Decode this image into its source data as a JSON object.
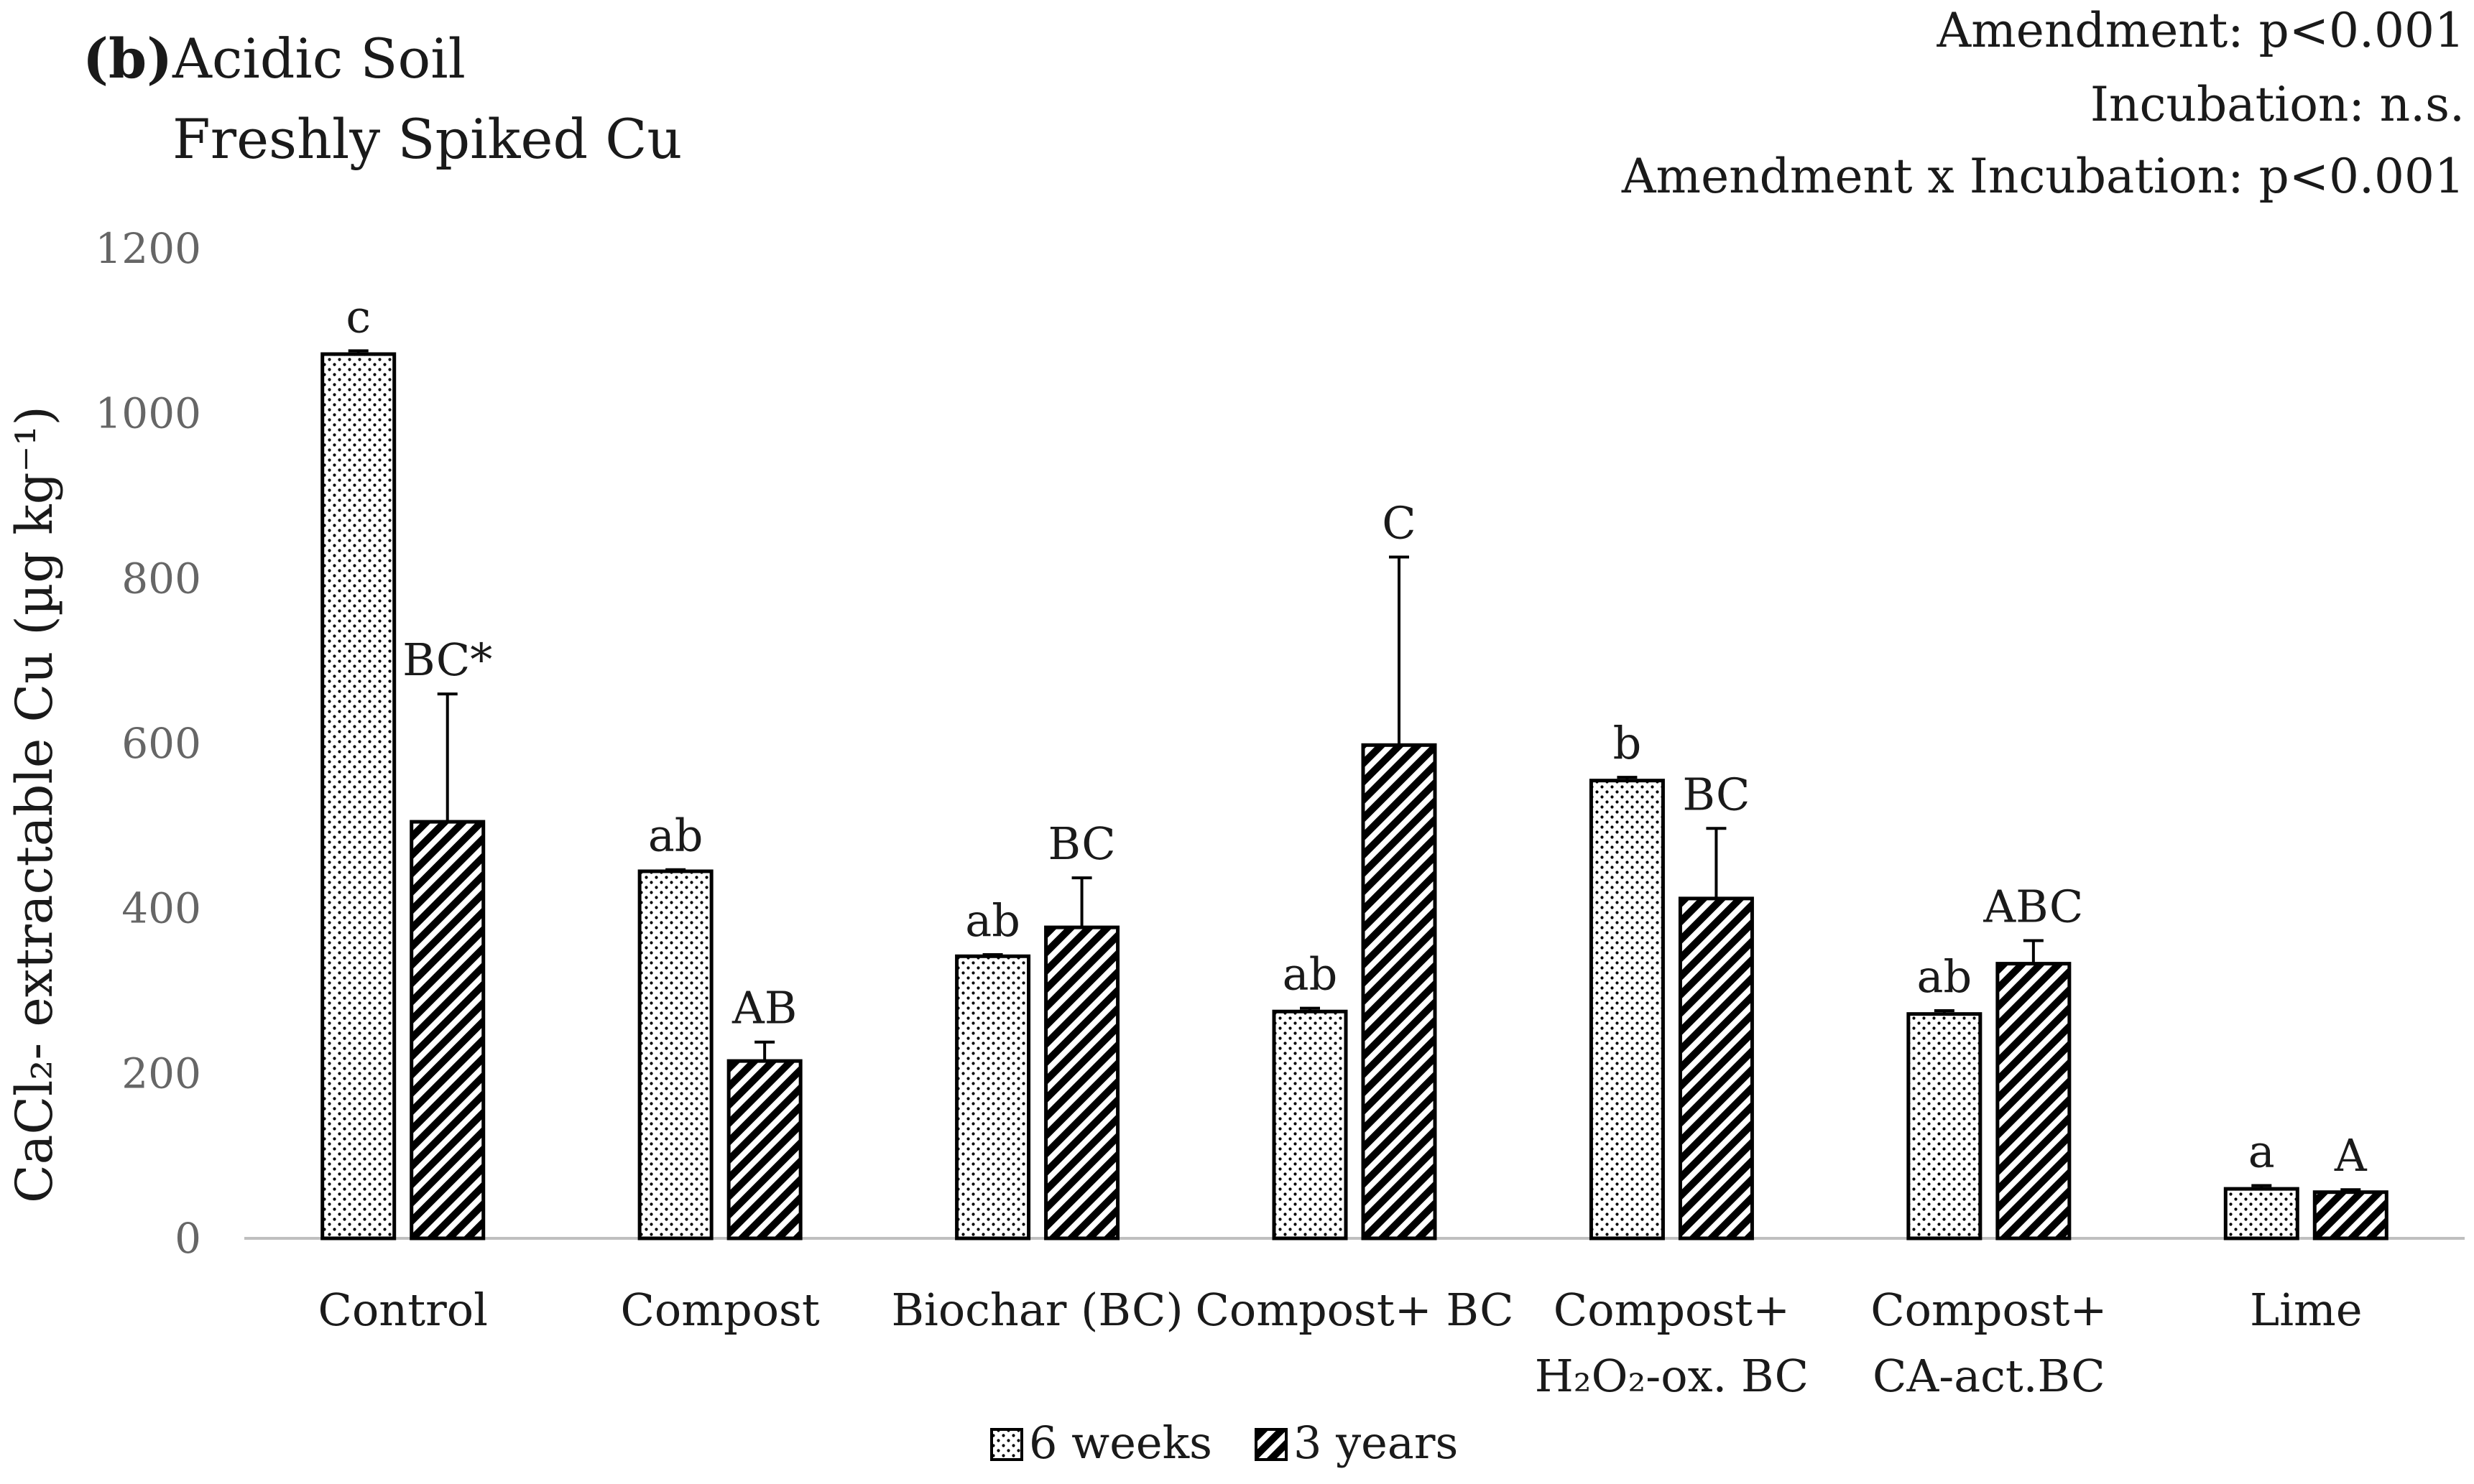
{
  "chart_data": {
    "type": "bar",
    "panel_label": "(b)",
    "title": "Acidic Soil",
    "subtitle": "Freshly Spiked Cu",
    "stats": [
      "Amendment: p<0.001",
      "Incubation: n.s.",
      "Amendment x Incubation: p<0.001"
    ],
    "ylabel": "CaCl₂- extractable Cu (µg kg⁻¹)",
    "ylim": [
      0,
      1200
    ],
    "yticks": [
      "0",
      "200",
      "400",
      "600",
      "800",
      "1000",
      "1200"
    ],
    "categories": [
      [
        "Control"
      ],
      [
        "Compost"
      ],
      [
        "Biochar (BC)"
      ],
      [
        "Compost+ BC"
      ],
      [
        "Compost+",
        "H₂O₂-ox. BC"
      ],
      [
        "Compost+",
        "CA-act.BC"
      ],
      [
        "Lime"
      ]
    ],
    "series": [
      {
        "name": "6 weeks",
        "pattern": "dots",
        "values": [
          1072,
          445,
          342,
          275,
          555,
          272,
          60
        ],
        "errors": [
          4,
          2,
          2,
          4,
          4,
          4,
          4
        ],
        "labels": [
          "c",
          "ab",
          "ab",
          "ab",
          "b",
          "ab",
          "a"
        ]
      },
      {
        "name": "3 years",
        "pattern": "hatch",
        "values": [
          505,
          215,
          377,
          598,
          412,
          333,
          56
        ],
        "errors": [
          155,
          23,
          60,
          228,
          85,
          28,
          3
        ],
        "labels": [
          "BC*",
          "AB",
          "BC",
          "C",
          "BC",
          "ABC",
          "A"
        ]
      }
    ],
    "grid": false,
    "legend_position": "bottom"
  }
}
